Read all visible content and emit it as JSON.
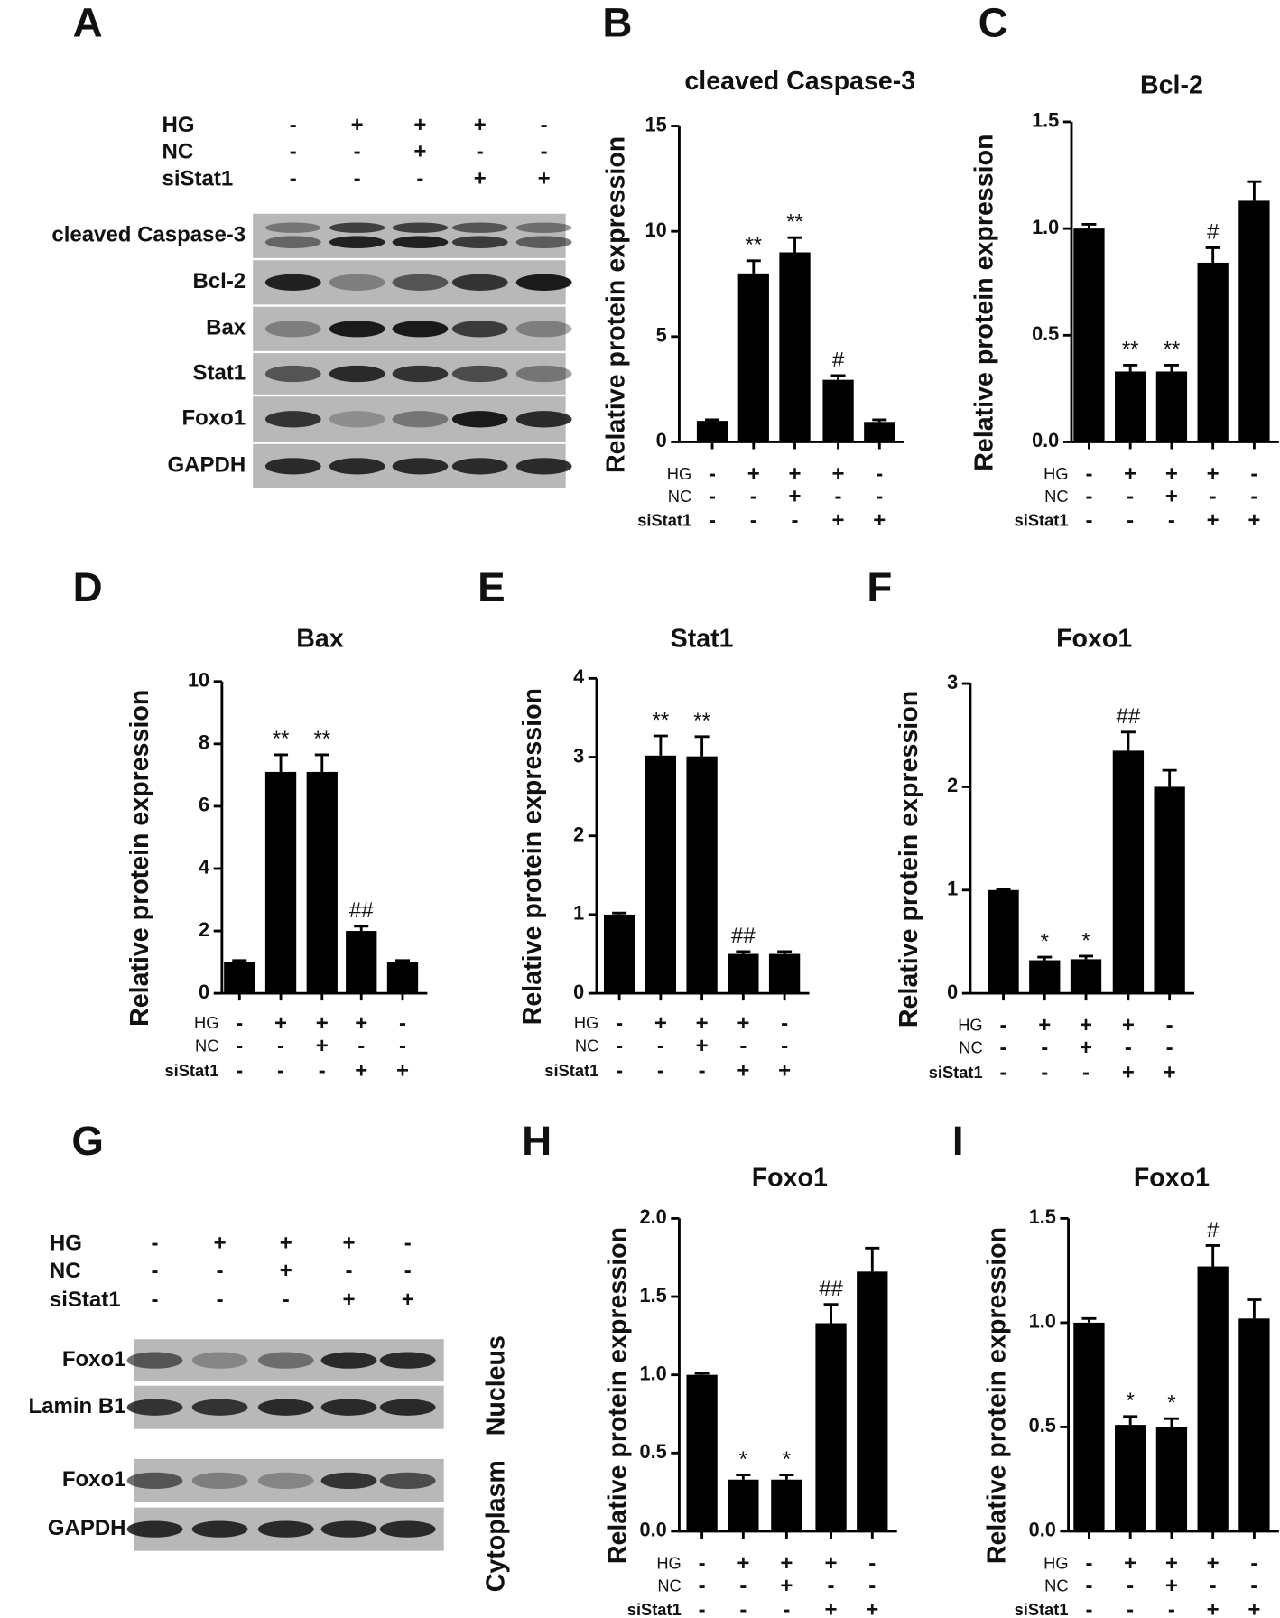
{
  "blots": [
    {
      "panel": "A",
      "conditions": [
        {
          "name": "HG",
          "signs": [
            "-",
            "+",
            "+",
            "+",
            "-"
          ]
        },
        {
          "name": "NC",
          "signs": [
            "-",
            "-",
            "+",
            "-",
            "-"
          ]
        },
        {
          "name": "siStat1",
          "signs": [
            "-",
            "-",
            "-",
            "+",
            "+"
          ]
        }
      ],
      "rows": [
        "cleaved Caspase-3",
        "Bcl-2",
        "Bax",
        "Stat1",
        "Foxo1",
        "GAPDH"
      ]
    },
    {
      "panel": "G",
      "conditions": [
        {
          "name": "HG",
          "signs": [
            "-",
            "+",
            "+",
            "+",
            "-"
          ]
        },
        {
          "name": "NC",
          "signs": [
            "-",
            "-",
            "+",
            "-",
            "-"
          ]
        },
        {
          "name": "siStat1",
          "signs": [
            "-",
            "-",
            "-",
            "+",
            "+"
          ]
        }
      ],
      "groups": [
        {
          "name": "Nucleus",
          "rows": [
            "Foxo1",
            "Lamin B1"
          ]
        },
        {
          "name": "Cytoplasm",
          "rows": [
            "Foxo1",
            "GAPDH"
          ]
        }
      ]
    }
  ],
  "chart_data": [
    {
      "panel": "B",
      "type": "bar",
      "title": "cleaved Caspase-3",
      "y_label": "Relative protein expression",
      "color": "#000000",
      "conditions": [
        {
          "name": "HG",
          "signs": [
            "-",
            "+",
            "+",
            "+",
            "-"
          ]
        },
        {
          "name": "NC",
          "signs": [
            "-",
            "-",
            "+",
            "-",
            "-"
          ]
        },
        {
          "name": "siStat1",
          "signs": [
            "-",
            "-",
            "-",
            "+",
            "+"
          ]
        }
      ],
      "values": [
        1.0,
        8.0,
        9.0,
        2.95,
        0.95
      ],
      "errors": [
        0.05,
        0.6,
        0.7,
        0.2,
        0.1
      ],
      "annotations": [
        null,
        "**",
        "**",
        "#",
        null
      ],
      "ylim": [
        0,
        15
      ],
      "yticks": [
        0,
        5,
        10,
        15
      ]
    },
    {
      "panel": "C",
      "type": "bar",
      "title": "Bcl-2",
      "y_label": "Relative protein expression",
      "color": "#000000",
      "conditions": [
        {
          "name": "HG",
          "signs": [
            "-",
            "+",
            "+",
            "+",
            "-"
          ]
        },
        {
          "name": "NC",
          "signs": [
            "-",
            "-",
            "+",
            "-",
            "-"
          ]
        },
        {
          "name": "siStat1",
          "signs": [
            "-",
            "-",
            "-",
            "+",
            "+"
          ]
        }
      ],
      "values": [
        1.0,
        0.33,
        0.33,
        0.84,
        1.13
      ],
      "errors": [
        0.02,
        0.03,
        0.03,
        0.07,
        0.09
      ],
      "annotations": [
        null,
        "**",
        "**",
        "#",
        null
      ],
      "ylim": [
        0,
        1.5
      ],
      "yticks": [
        {
          "value": 0,
          "label": "0.0"
        },
        0.5,
        {
          "value": 1,
          "label": "1.0"
        },
        1.5
      ]
    },
    {
      "panel": "D",
      "type": "bar",
      "title": "Bax",
      "y_label": "Relative protein expression",
      "color": "#000000",
      "conditions": [
        {
          "name": "HG",
          "signs": [
            "-",
            "+",
            "+",
            "+",
            "-"
          ]
        },
        {
          "name": "NC",
          "signs": [
            "-",
            "-",
            "+",
            "-",
            "-"
          ]
        },
        {
          "name": "siStat1",
          "signs": [
            "-",
            "-",
            "-",
            "+",
            "+"
          ]
        }
      ],
      "values": [
        1.0,
        7.1,
        7.1,
        2.0,
        1.0
      ],
      "errors": [
        0.05,
        0.55,
        0.55,
        0.15,
        0.05
      ],
      "annotations": [
        null,
        "**",
        "**",
        "##",
        null
      ],
      "ylim": [
        0,
        10
      ],
      "yticks": [
        0,
        2,
        4,
        6,
        8,
        10
      ]
    },
    {
      "panel": "E",
      "type": "bar",
      "title": "Stat1",
      "y_label": "Relative protein expression",
      "color": "#000000",
      "conditions": [
        {
          "name": "HG",
          "signs": [
            "-",
            "+",
            "+",
            "+",
            "-"
          ]
        },
        {
          "name": "NC",
          "signs": [
            "-",
            "-",
            "+",
            "-",
            "-"
          ]
        },
        {
          "name": "siStat1",
          "signs": [
            "-",
            "-",
            "-",
            "+",
            "+"
          ]
        }
      ],
      "values": [
        1.0,
        3.02,
        3.01,
        0.5,
        0.5
      ],
      "errors": [
        0.02,
        0.25,
        0.25,
        0.03,
        0.03
      ],
      "annotations": [
        null,
        "**",
        "**",
        "##",
        null
      ],
      "ylim": [
        0,
        4
      ],
      "yticks": [
        0,
        1,
        2,
        3,
        4
      ]
    },
    {
      "panel": "F",
      "type": "bar",
      "title": "Foxo1",
      "y_label": "Relative protein expression",
      "color": "#000000",
      "conditions": [
        {
          "name": "HG",
          "signs": [
            "-",
            "+",
            "+",
            "+",
            "-"
          ]
        },
        {
          "name": "NC",
          "signs": [
            "-",
            "-",
            "+",
            "-",
            "-"
          ]
        },
        {
          "name": "siStat1",
          "signs": [
            "-",
            "-",
            "-",
            "+",
            "+"
          ]
        }
      ],
      "values": [
        1.0,
        0.32,
        0.33,
        2.35,
        2.0
      ],
      "errors": [
        0.01,
        0.03,
        0.03,
        0.18,
        0.16
      ],
      "annotations": [
        null,
        "*",
        "*",
        "##",
        null
      ],
      "ylim": [
        0,
        3
      ],
      "yticks": [
        0,
        1,
        2,
        3
      ]
    },
    {
      "panel": "H",
      "type": "bar",
      "title": "Foxo1",
      "y_label": "Relative protein expression",
      "color": "#000000",
      "conditions": [
        {
          "name": "HG",
          "signs": [
            "-",
            "+",
            "+",
            "+",
            "-"
          ]
        },
        {
          "name": "NC",
          "signs": [
            "-",
            "-",
            "+",
            "-",
            "-"
          ]
        },
        {
          "name": "siStat1",
          "signs": [
            "-",
            "-",
            "-",
            "+",
            "+"
          ]
        }
      ],
      "values": [
        1.0,
        0.33,
        0.33,
        1.33,
        1.66
      ],
      "errors": [
        0.01,
        0.03,
        0.03,
        0.12,
        0.15
      ],
      "annotations": [
        null,
        "*",
        "*",
        "##",
        null
      ],
      "ylim": [
        0,
        2
      ],
      "yticks": [
        {
          "value": 0,
          "label": "0.0"
        },
        0.5,
        {
          "value": 1,
          "label": "1.0"
        },
        1.5,
        {
          "value": 2,
          "label": "2.0"
        }
      ]
    },
    {
      "panel": "I",
      "type": "bar",
      "title": "Foxo1",
      "y_label": "Relative protein expression",
      "color": "#000000",
      "conditions": [
        {
          "name": "HG",
          "signs": [
            "-",
            "+",
            "+",
            "+",
            "-"
          ]
        },
        {
          "name": "NC",
          "signs": [
            "-",
            "-",
            "+",
            "-",
            "-"
          ]
        },
        {
          "name": "siStat1",
          "signs": [
            "-",
            "-",
            "-",
            "+",
            "+"
          ]
        }
      ],
      "values": [
        1.0,
        0.51,
        0.5,
        1.27,
        1.02
      ],
      "errors": [
        0.02,
        0.04,
        0.04,
        0.1,
        0.09
      ],
      "annotations": [
        null,
        "*",
        "*",
        "#",
        null
      ],
      "ylim": [
        0,
        1.5
      ],
      "yticks": [
        {
          "value": 0,
          "label": "0.0"
        },
        0.5,
        {
          "value": 1,
          "label": "1.0"
        },
        1.5
      ]
    }
  ]
}
